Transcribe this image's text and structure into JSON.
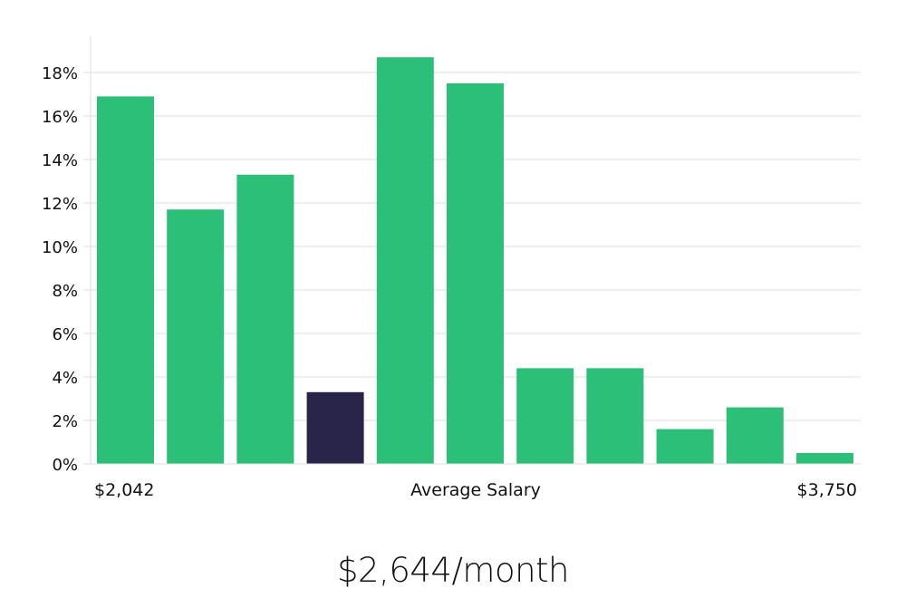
{
  "chart_data": {
    "type": "bar",
    "values": [
      16.9,
      11.7,
      13.3,
      3.3,
      18.7,
      17.5,
      4.4,
      4.4,
      1.6,
      2.6,
      0.5
    ],
    "highlight_index": 3,
    "yticks": [
      "0%",
      "2%",
      "4%",
      "6%",
      "8%",
      "10%",
      "12%",
      "14%",
      "16%",
      "18%"
    ],
    "ylim": [
      0,
      19.5
    ],
    "grid": true,
    "x_min_label": "$2,042",
    "x_center_label": "Average Salary",
    "x_max_label": "$3,750",
    "colors": {
      "bar": "#2bbf78",
      "highlight": "#29254a",
      "grid": "#dedede"
    }
  },
  "summary": {
    "value": "$2,644/month"
  }
}
